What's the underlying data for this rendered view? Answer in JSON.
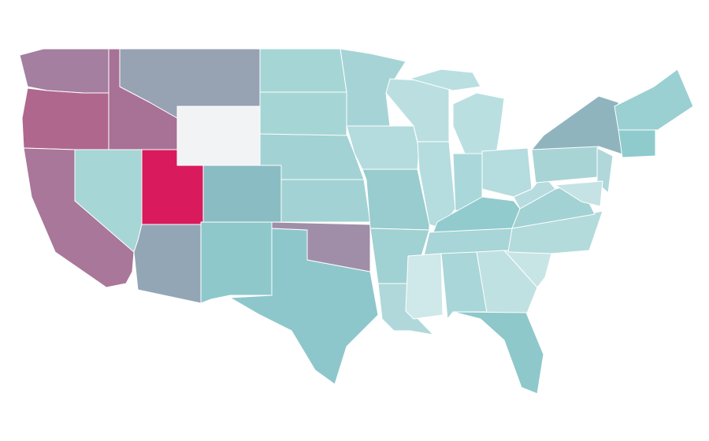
{
  "chart_data": {
    "type": "choropleth",
    "border_color": "#ffffff",
    "colors": [
      "#a47f9f",
      "#b0678e",
      "#a9779a",
      "#a87196",
      "#97a2b3",
      "#f2f3f4",
      "#d91b5e",
      "#a6d6d6",
      "#93a6b5",
      "#8abcc3",
      "#8ec8cb",
      "#8ec7cb",
      "#a08ea8",
      "#a2d2d4",
      "#a2d2d4",
      "#a6d5d6",
      "#a6d5d6",
      "#a6d4d6",
      "#b4dcdf",
      "#98cccf",
      "#a0d1d3",
      "#b0d8da",
      "#bbdfe1",
      "#b5dcdf",
      "#b9dfe1",
      "#b9dfe1",
      "#aad8da",
      "#b5dcdf",
      "#91cbcd",
      "#a8d5d7",
      "#cfe8e9",
      "#a9d6d8",
      "#bfe1e2",
      "#8ec8cb",
      "#c8e5e6",
      "#b3dbdc",
      "#a3d2d4",
      "#b7dcdf",
      "#a8d4d6",
      "#8fb4be",
      "#9ad0d2",
      "#8fcbcd",
      "#b0d8da",
      "#c5e3e4"
    ]
  }
}
